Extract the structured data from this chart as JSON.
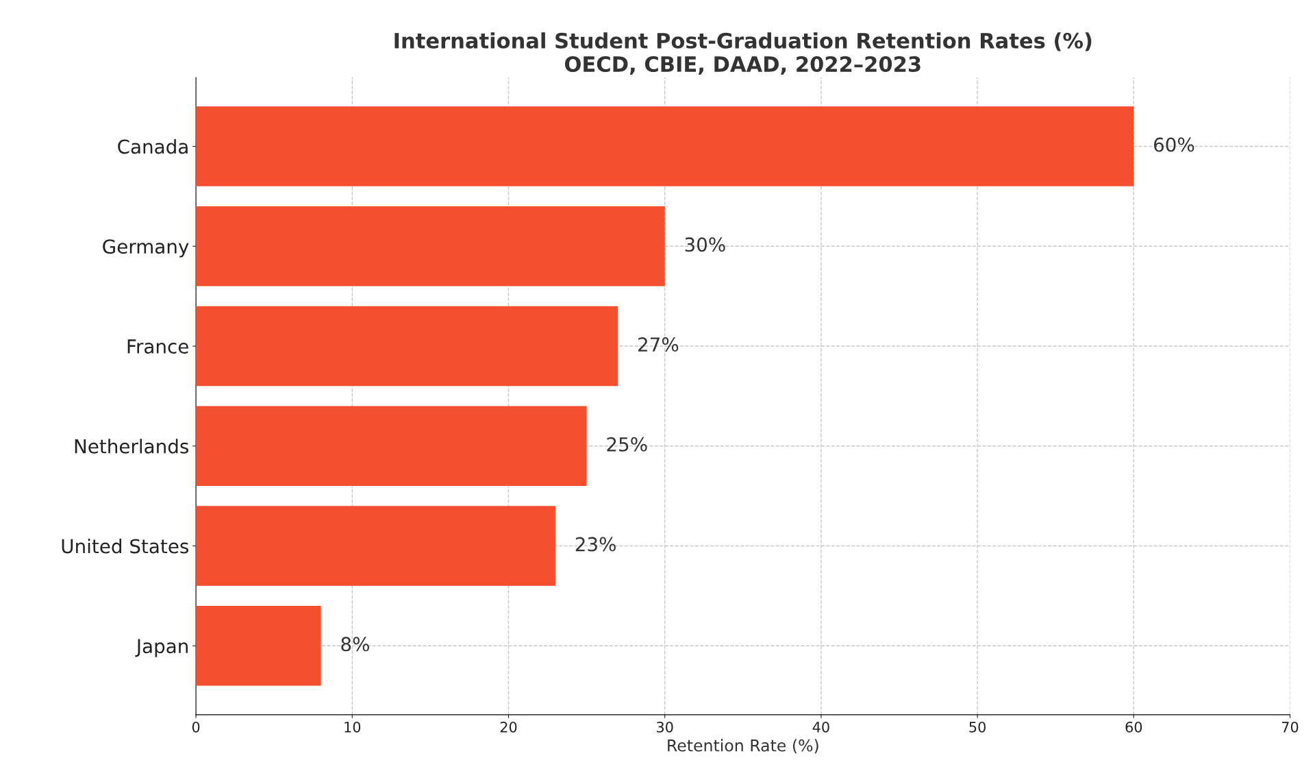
{
  "chart_data": {
    "type": "bar",
    "orientation": "horizontal",
    "title": "International Student Post-Graduation Retention Rates (%)\nOECD, CBIE, DAAD, 2022–2023",
    "xlabel": "Retention Rate (%)",
    "categories": [
      "Canada",
      "Germany",
      "France",
      "Netherlands",
      "United States",
      "Japan"
    ],
    "values": [
      60,
      30,
      27,
      25,
      23,
      8
    ],
    "value_labels": [
      "60%",
      "30%",
      "27%",
      "25%",
      "23%",
      "8%"
    ],
    "color": "#f44f2f",
    "xlim": [
      0,
      70
    ],
    "xticks": [
      0,
      10,
      20,
      30,
      40,
      50,
      60,
      70
    ],
    "grid": true,
    "line_style": "dashed"
  }
}
